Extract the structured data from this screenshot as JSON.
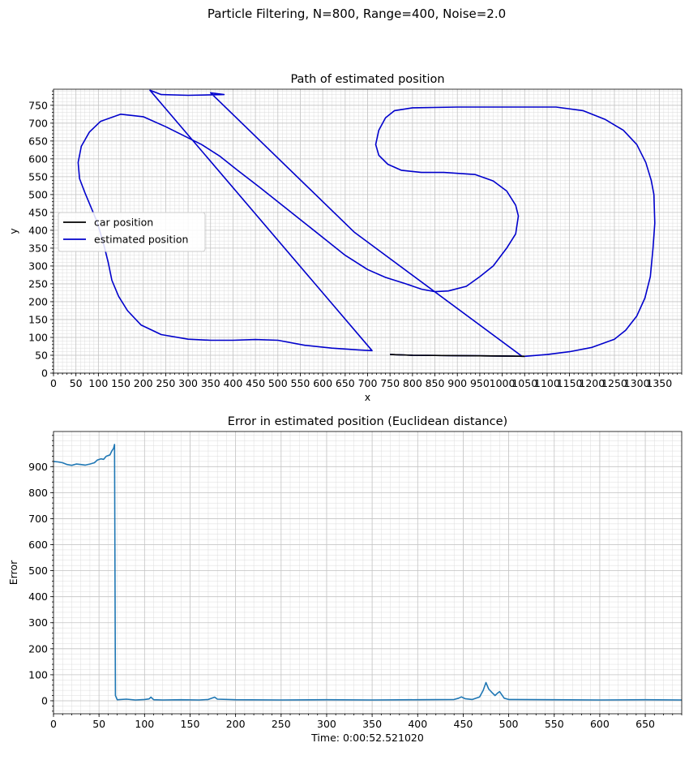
{
  "figure": {
    "suptitle": "Particle Filtering, N=800, Range=400, Noise=2.0"
  },
  "chart_data": [
    {
      "type": "line",
      "title": "Path of estimated position",
      "xlabel": "x",
      "ylabel": "y",
      "xlim": [
        0,
        1400
      ],
      "ylim": [
        0,
        795
      ],
      "xticks": [
        0,
        50,
        100,
        150,
        200,
        250,
        300,
        350,
        400,
        450,
        500,
        550,
        600,
        650,
        700,
        750,
        800,
        850,
        900,
        950,
        1000,
        1050,
        1100,
        1150,
        1200,
        1250,
        1300,
        1350
      ],
      "yticks": [
        0,
        50,
        100,
        150,
        200,
        250,
        300,
        350,
        400,
        450,
        500,
        550,
        600,
        650,
        700,
        750
      ],
      "grid": true,
      "minor_grid": true,
      "legend_position": "center-left",
      "series": [
        {
          "name": "car position",
          "color": "#000000",
          "points": [
            [
              750,
              52
            ],
            [
              800,
              50
            ],
            [
              900,
              49
            ],
            [
              1000,
              48
            ],
            [
              1050,
              47
            ]
          ]
        },
        {
          "name": "estimated position",
          "color": "#0000cc",
          "points": [
            [
              750,
              52
            ],
            [
              800,
              50
            ],
            [
              900,
              49
            ],
            [
              1000,
              48
            ],
            [
              1050,
              47
            ],
            [
              1100,
              52
            ],
            [
              1150,
              60
            ],
            [
              1200,
              72
            ],
            [
              1250,
              95
            ],
            [
              1275,
              120
            ],
            [
              1300,
              160
            ],
            [
              1318,
              210
            ],
            [
              1330,
              270
            ],
            [
              1336,
              350
            ],
            [
              1340,
              420
            ],
            [
              1338,
              500
            ],
            [
              1332,
              540
            ],
            [
              1320,
              590
            ],
            [
              1300,
              640
            ],
            [
              1270,
              680
            ],
            [
              1230,
              710
            ],
            [
              1180,
              735
            ],
            [
              1120,
              745
            ],
            [
              1000,
              745
            ],
            [
              900,
              745
            ],
            [
              800,
              743
            ],
            [
              760,
              735
            ],
            [
              740,
              715
            ],
            [
              725,
              680
            ],
            [
              718,
              640
            ],
            [
              725,
              610
            ],
            [
              745,
              585
            ],
            [
              775,
              568
            ],
            [
              820,
              562
            ],
            [
              870,
              562
            ],
            [
              940,
              556
            ],
            [
              980,
              538
            ],
            [
              1010,
              510
            ],
            [
              1030,
              470
            ],
            [
              1036,
              440
            ],
            [
              1030,
              390
            ],
            [
              1010,
              350
            ],
            [
              980,
              300
            ],
            [
              950,
              270
            ],
            [
              920,
              243
            ],
            [
              880,
              230
            ],
            [
              850,
              228
            ],
            [
              820,
              235
            ],
            [
              785,
              250
            ],
            [
              740,
              268
            ],
            [
              700,
              290
            ],
            [
              650,
              330
            ],
            [
              610,
              370
            ],
            [
              560,
              420
            ],
            [
              510,
              470
            ],
            [
              460,
              520
            ],
            [
              410,
              568
            ],
            [
              370,
              608
            ],
            [
              330,
              640
            ],
            [
              290,
              665
            ],
            [
              250,
              690
            ],
            [
              200,
              718
            ],
            [
              150,
              725
            ],
            [
              105,
              705
            ],
            [
              80,
              675
            ],
            [
              62,
              635
            ],
            [
              55,
              590
            ],
            [
              58,
              545
            ],
            [
              70,
              505
            ],
            [
              85,
              460
            ],
            [
              98,
              420
            ],
            [
              112,
              360
            ],
            [
              122,
              310
            ],
            [
              130,
              260
            ],
            [
              145,
              215
            ],
            [
              165,
              175
            ],
            [
              195,
              135
            ],
            [
              240,
              108
            ],
            [
              300,
              95
            ],
            [
              350,
              92
            ],
            [
              400,
              92
            ],
            [
              450,
              94
            ],
            [
              500,
              92
            ],
            [
              560,
              78
            ],
            [
              620,
              70
            ],
            [
              680,
              65
            ],
            [
              710,
              63
            ],
            [
              710,
              63
            ],
            [
              710,
              63
            ],
            [
              215,
              792
            ],
            [
              240,
              780
            ],
            [
              300,
              778
            ],
            [
              380,
              780
            ],
            [
              350,
              785
            ],
            [
              670,
              395
            ],
            [
              1045,
              46
            ]
          ]
        }
      ]
    },
    {
      "type": "line",
      "title": "Error in estimated position (Euclidean distance)",
      "xlabel": "Time: 0:00:52.521020",
      "ylabel": "Error",
      "xlim": [
        0,
        690
      ],
      "ylim": [
        -50,
        1035
      ],
      "xticks": [
        0,
        50,
        100,
        150,
        200,
        250,
        300,
        350,
        400,
        450,
        500,
        550,
        600,
        650
      ],
      "yticks": [
        0,
        100,
        200,
        300,
        400,
        500,
        600,
        700,
        800,
        900
      ],
      "grid": true,
      "minor_grid": true,
      "series": [
        {
          "name": "",
          "color": "#1f77b4",
          "points": [
            [
              0,
              920
            ],
            [
              5,
              918
            ],
            [
              10,
              915
            ],
            [
              15,
              908
            ],
            [
              20,
              905
            ],
            [
              25,
              910
            ],
            [
              30,
              908
            ],
            [
              35,
              906
            ],
            [
              40,
              910
            ],
            [
              45,
              915
            ],
            [
              48,
              925
            ],
            [
              52,
              930
            ],
            [
              55,
              928
            ],
            [
              58,
              940
            ],
            [
              62,
              945
            ],
            [
              64,
              960
            ],
            [
              66,
              970
            ],
            [
              67,
              985
            ],
            [
              68,
              20
            ],
            [
              70,
              4
            ],
            [
              80,
              6
            ],
            [
              90,
              3
            ],
            [
              100,
              5
            ],
            [
              105,
              7
            ],
            [
              107,
              14
            ],
            [
              110,
              4
            ],
            [
              120,
              3
            ],
            [
              140,
              4
            ],
            [
              160,
              3
            ],
            [
              170,
              5
            ],
            [
              177,
              14
            ],
            [
              180,
              6
            ],
            [
              200,
              4
            ],
            [
              250,
              3
            ],
            [
              300,
              4
            ],
            [
              350,
              3
            ],
            [
              400,
              4
            ],
            [
              440,
              5
            ],
            [
              445,
              10
            ],
            [
              448,
              15
            ],
            [
              452,
              8
            ],
            [
              460,
              5
            ],
            [
              468,
              15
            ],
            [
              472,
              40
            ],
            [
              475,
              70
            ],
            [
              478,
              45
            ],
            [
              482,
              30
            ],
            [
              485,
              20
            ],
            [
              488,
              30
            ],
            [
              490,
              35
            ],
            [
              492,
              25
            ],
            [
              495,
              10
            ],
            [
              500,
              5
            ],
            [
              550,
              4
            ],
            [
              600,
              3
            ],
            [
              650,
              4
            ],
            [
              690,
              3
            ]
          ]
        }
      ]
    }
  ]
}
